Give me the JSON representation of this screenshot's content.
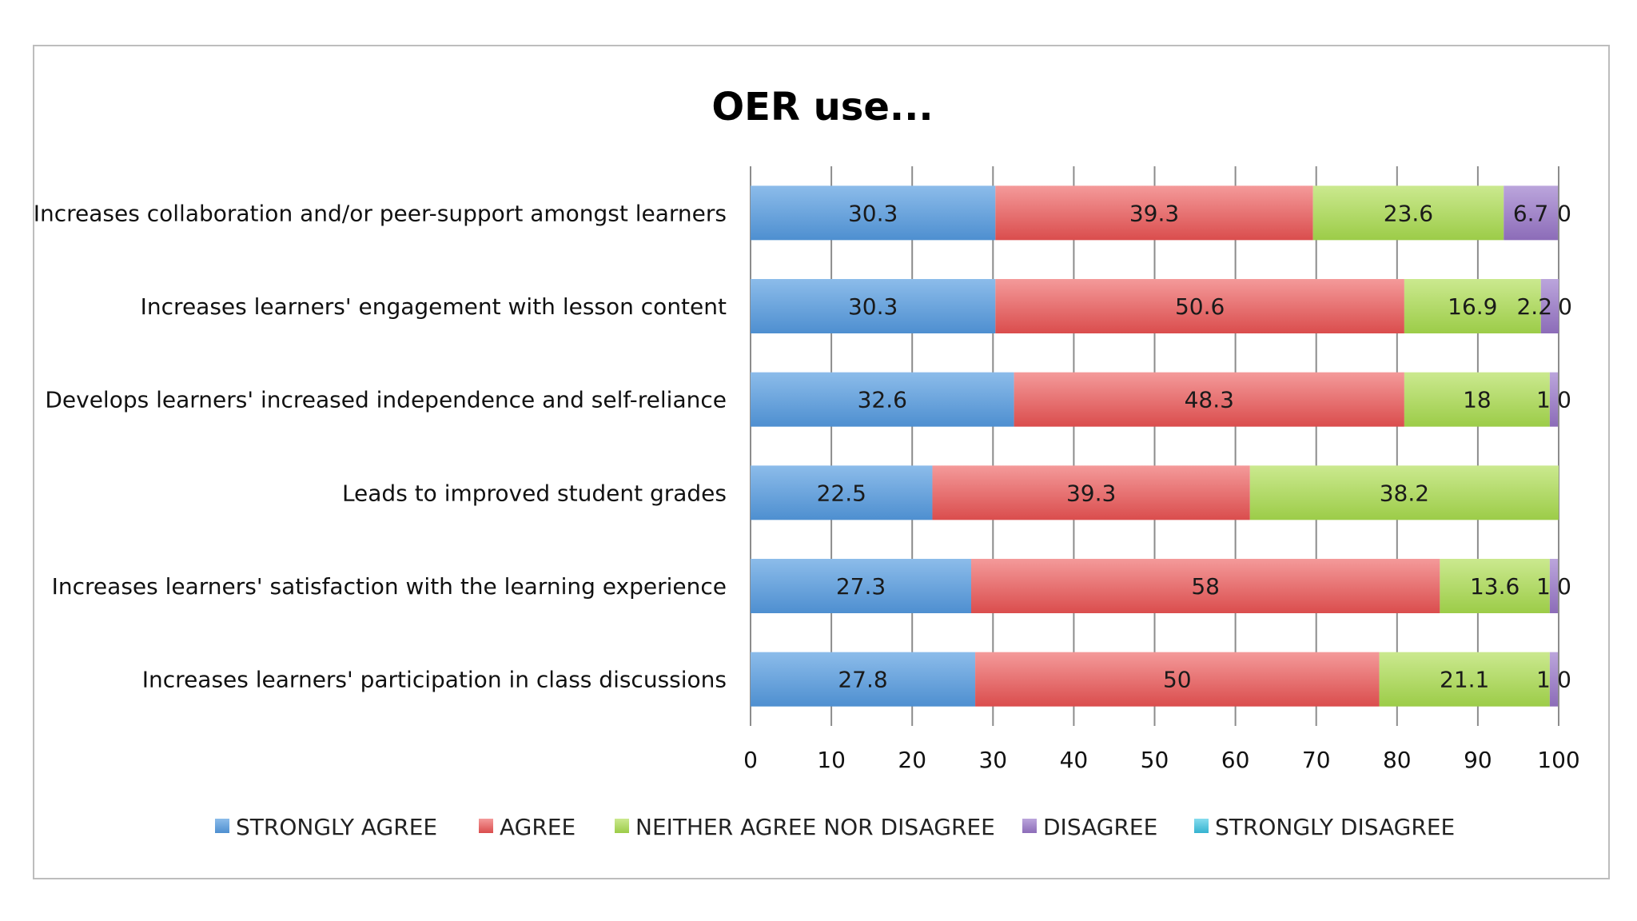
{
  "chart_data": {
    "type": "bar",
    "orientation": "horizontal",
    "stacked": true,
    "title": "OER use...",
    "xlabel": "",
    "ylabel": "",
    "xlim": [
      0,
      100
    ],
    "x_ticks": [
      "0",
      "10",
      "20",
      "30",
      "40",
      "50",
      "60",
      "70",
      "80",
      "90",
      "100"
    ],
    "grid": true,
    "legend_position": "bottom",
    "categories": [
      "Increases collaboration and/or peer-support amongst learners",
      "Increases learners' engagement with lesson content",
      "Develops learners' increased independence and self-reliance",
      "Leads to improved student grades",
      "Increases learners' satisfaction with the learning experience",
      "Increases learners' participation in class discussions"
    ],
    "series": [
      {
        "name": "STRONGLY AGREE",
        "color": "#5b9bd5",
        "values": [
          30.3,
          30.3,
          32.6,
          22.5,
          27.3,
          27.8
        ]
      },
      {
        "name": "AGREE",
        "color": "#e05c5c",
        "values": [
          39.3,
          50.6,
          48.3,
          39.3,
          58,
          50
        ]
      },
      {
        "name": "NEITHER AGREE NOR DISAGREE",
        "color": "#a9d35a",
        "values": [
          23.6,
          16.9,
          18,
          38.2,
          13.6,
          21.1
        ]
      },
      {
        "name": "DISAGREE",
        "color": "#9b7ec2",
        "values": [
          6.7,
          2.2,
          1,
          0,
          1,
          1
        ]
      },
      {
        "name": "STRONGLY DISAGREE",
        "color": "#4bc2dc",
        "values": [
          0,
          0,
          0,
          0,
          0,
          0
        ]
      }
    ]
  }
}
